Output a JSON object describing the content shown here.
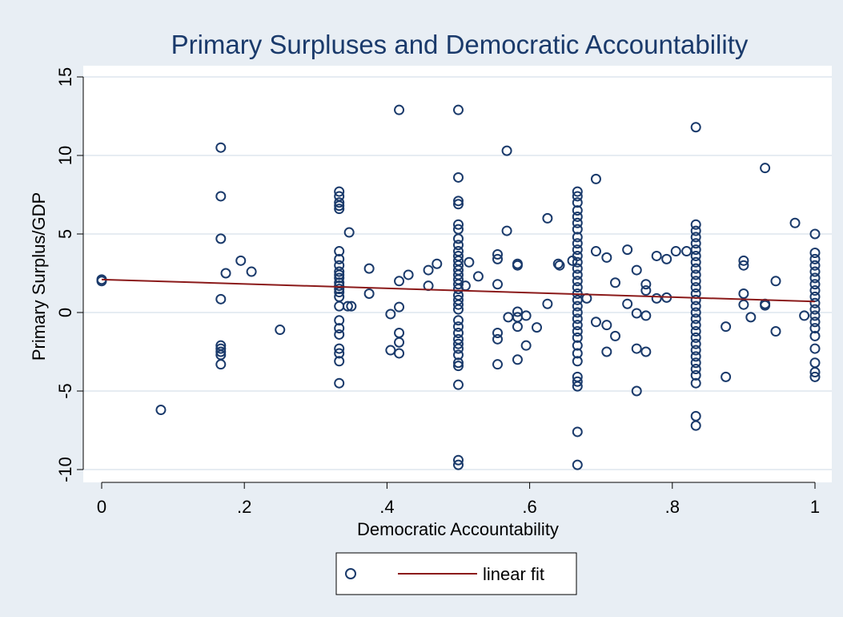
{
  "chart_data": {
    "type": "scatter",
    "title": "Primary Surpluses and Democratic Accountability",
    "xlabel": "Democratic Accountability",
    "ylabel": "Primary Surplus/GDP",
    "xlim": [
      0,
      1
    ],
    "ylim": [
      -10,
      15
    ],
    "x_ticks": [
      0,
      0.2,
      0.4,
      0.6,
      0.8,
      1
    ],
    "x_tick_labels": [
      "0",
      ".2",
      ".4",
      ".6",
      ".8",
      "1"
    ],
    "y_ticks": [
      -10,
      -5,
      0,
      5,
      10,
      15
    ],
    "y_tick_labels": [
      "-10",
      "-5",
      "0",
      "5",
      "10",
      "15"
    ],
    "grid": "horizontal",
    "legend_position": "bottom",
    "colors": {
      "background": "#e8eef4",
      "plot_area": "#ffffff",
      "marker": "#1a3a6b",
      "fit_line": "#8b1a1a",
      "grid": "#e6ecf2",
      "title": "#1a3a6b"
    },
    "series": [
      {
        "marker": "hollow-circle",
        "points": [
          [
            0,
            2.1
          ],
          [
            0,
            2.0
          ],
          [
            0.083,
            -6.2
          ],
          [
            0.167,
            10.5
          ],
          [
            0.167,
            7.4
          ],
          [
            0.167,
            4.7
          ],
          [
            0.167,
            0.85
          ],
          [
            0.167,
            -2.1
          ],
          [
            0.167,
            -2.3
          ],
          [
            0.167,
            -2.5
          ],
          [
            0.167,
            -2.7
          ],
          [
            0.167,
            -3.3
          ],
          [
            0.174,
            2.5
          ],
          [
            0.195,
            3.3
          ],
          [
            0.21,
            2.6
          ],
          [
            0.25,
            -1.1
          ],
          [
            0.333,
            7.7
          ],
          [
            0.333,
            7.4
          ],
          [
            0.333,
            7.0
          ],
          [
            0.333,
            6.8
          ],
          [
            0.333,
            6.6
          ],
          [
            0.333,
            3.9
          ],
          [
            0.333,
            3.4
          ],
          [
            0.333,
            3.0
          ],
          [
            0.333,
            2.6
          ],
          [
            0.333,
            2.4
          ],
          [
            0.333,
            2.2
          ],
          [
            0.333,
            1.9
          ],
          [
            0.333,
            1.7
          ],
          [
            0.333,
            1.5
          ],
          [
            0.333,
            1.3
          ],
          [
            0.333,
            1.0
          ],
          [
            0.333,
            0.4
          ],
          [
            0.333,
            -0.5
          ],
          [
            0.333,
            -1.0
          ],
          [
            0.333,
            -1.4
          ],
          [
            0.333,
            -2.3
          ],
          [
            0.333,
            -2.6
          ],
          [
            0.333,
            -3.1
          ],
          [
            0.333,
            -4.5
          ],
          [
            0.345,
            0.4
          ],
          [
            0.347,
            5.1
          ],
          [
            0.35,
            0.4
          ],
          [
            0.375,
            2.8
          ],
          [
            0.375,
            1.2
          ],
          [
            0.405,
            -0.1
          ],
          [
            0.405,
            -2.4
          ],
          [
            0.417,
            12.9
          ],
          [
            0.417,
            2.0
          ],
          [
            0.417,
            0.35
          ],
          [
            0.417,
            -1.3
          ],
          [
            0.417,
            -1.9
          ],
          [
            0.417,
            -2.6
          ],
          [
            0.43,
            2.4
          ],
          [
            0.458,
            2.7
          ],
          [
            0.458,
            1.7
          ],
          [
            0.47,
            3.1
          ],
          [
            0.5,
            12.9
          ],
          [
            0.5,
            8.6
          ],
          [
            0.5,
            7.1
          ],
          [
            0.5,
            6.9
          ],
          [
            0.5,
            5.6
          ],
          [
            0.5,
            5.3
          ],
          [
            0.5,
            4.7
          ],
          [
            0.5,
            4.3
          ],
          [
            0.5,
            3.9
          ],
          [
            0.5,
            3.6
          ],
          [
            0.5,
            3.3
          ],
          [
            0.5,
            3.0
          ],
          [
            0.5,
            2.7
          ],
          [
            0.5,
            2.4
          ],
          [
            0.5,
            2.1
          ],
          [
            0.5,
            1.8
          ],
          [
            0.5,
            1.5
          ],
          [
            0.5,
            1.1
          ],
          [
            0.5,
            0.8
          ],
          [
            0.5,
            0.5
          ],
          [
            0.5,
            0.2
          ],
          [
            0.5,
            -0.5
          ],
          [
            0.5,
            -0.9
          ],
          [
            0.5,
            -1.3
          ],
          [
            0.5,
            -1.7
          ],
          [
            0.5,
            -2.0
          ],
          [
            0.5,
            -2.3
          ],
          [
            0.5,
            -2.7
          ],
          [
            0.5,
            -3.2
          ],
          [
            0.5,
            -3.4
          ],
          [
            0.5,
            -4.6
          ],
          [
            0.5,
            -9.4
          ],
          [
            0.5,
            -9.7
          ],
          [
            0.51,
            1.7
          ],
          [
            0.515,
            3.2
          ],
          [
            0.528,
            2.3
          ],
          [
            0.555,
            3.7
          ],
          [
            0.555,
            3.4
          ],
          [
            0.555,
            1.8
          ],
          [
            0.555,
            -1.3
          ],
          [
            0.555,
            -1.7
          ],
          [
            0.555,
            -3.3
          ],
          [
            0.568,
            10.3
          ],
          [
            0.568,
            5.2
          ],
          [
            0.57,
            -0.3
          ],
          [
            0.583,
            3.1
          ],
          [
            0.583,
            3.0
          ],
          [
            0.583,
            0.05
          ],
          [
            0.583,
            -0.3
          ],
          [
            0.583,
            -0.9
          ],
          [
            0.583,
            -3.0
          ],
          [
            0.595,
            -0.2
          ],
          [
            0.595,
            -2.1
          ],
          [
            0.61,
            -0.95
          ],
          [
            0.625,
            6.0
          ],
          [
            0.625,
            0.55
          ],
          [
            0.64,
            3.1
          ],
          [
            0.642,
            3.0
          ],
          [
            0.66,
            3.3
          ],
          [
            0.667,
            7.7
          ],
          [
            0.667,
            7.4
          ],
          [
            0.667,
            7.0
          ],
          [
            0.667,
            6.5
          ],
          [
            0.667,
            6.1
          ],
          [
            0.667,
            5.7
          ],
          [
            0.667,
            5.3
          ],
          [
            0.667,
            4.8
          ],
          [
            0.667,
            4.4
          ],
          [
            0.667,
            4.0
          ],
          [
            0.667,
            3.6
          ],
          [
            0.667,
            3.2
          ],
          [
            0.667,
            2.8
          ],
          [
            0.667,
            2.4
          ],
          [
            0.667,
            2.0
          ],
          [
            0.667,
            1.6
          ],
          [
            0.667,
            1.2
          ],
          [
            0.667,
            0.8
          ],
          [
            0.667,
            0.4
          ],
          [
            0.667,
            0.0
          ],
          [
            0.667,
            -0.4
          ],
          [
            0.667,
            -0.8
          ],
          [
            0.667,
            -1.2
          ],
          [
            0.667,
            -1.6
          ],
          [
            0.667,
            -2.1
          ],
          [
            0.667,
            -2.6
          ],
          [
            0.667,
            -3.1
          ],
          [
            0.667,
            -4.1
          ],
          [
            0.667,
            -4.4
          ],
          [
            0.667,
            -4.7
          ],
          [
            0.667,
            -7.6
          ],
          [
            0.667,
            -9.7
          ],
          [
            0.68,
            0.9
          ],
          [
            0.693,
            8.5
          ],
          [
            0.693,
            3.9
          ],
          [
            0.693,
            -0.6
          ],
          [
            0.708,
            3.5
          ],
          [
            0.708,
            -0.8
          ],
          [
            0.708,
            -2.5
          ],
          [
            0.72,
            1.9
          ],
          [
            0.72,
            -1.5
          ],
          [
            0.737,
            4.0
          ],
          [
            0.737,
            0.55
          ],
          [
            0.75,
            2.7
          ],
          [
            0.75,
            -0.05
          ],
          [
            0.75,
            -2.3
          ],
          [
            0.75,
            -5.0
          ],
          [
            0.763,
            1.8
          ],
          [
            0.763,
            1.4
          ],
          [
            0.763,
            -0.2
          ],
          [
            0.763,
            -2.5
          ],
          [
            0.778,
            3.6
          ],
          [
            0.778,
            0.9
          ],
          [
            0.792,
            3.4
          ],
          [
            0.792,
            0.95
          ],
          [
            0.805,
            3.9
          ],
          [
            0.82,
            3.9
          ],
          [
            0.833,
            11.8
          ],
          [
            0.833,
            5.6
          ],
          [
            0.833,
            5.2
          ],
          [
            0.833,
            4.8
          ],
          [
            0.833,
            4.4
          ],
          [
            0.833,
            4.0
          ],
          [
            0.833,
            3.6
          ],
          [
            0.833,
            3.2
          ],
          [
            0.833,
            2.8
          ],
          [
            0.833,
            2.4
          ],
          [
            0.833,
            2.0
          ],
          [
            0.833,
            1.6
          ],
          [
            0.833,
            1.2
          ],
          [
            0.833,
            0.8
          ],
          [
            0.833,
            0.4
          ],
          [
            0.833,
            0.0
          ],
          [
            0.833,
            -0.4
          ],
          [
            0.833,
            -0.8
          ],
          [
            0.833,
            -1.2
          ],
          [
            0.833,
            -1.6
          ],
          [
            0.833,
            -2.0
          ],
          [
            0.833,
            -2.4
          ],
          [
            0.833,
            -2.8
          ],
          [
            0.833,
            -3.2
          ],
          [
            0.833,
            -3.6
          ],
          [
            0.833,
            -4.0
          ],
          [
            0.833,
            -4.5
          ],
          [
            0.833,
            -6.6
          ],
          [
            0.833,
            -7.2
          ],
          [
            0.875,
            -0.9
          ],
          [
            0.875,
            -4.1
          ],
          [
            0.9,
            3.3
          ],
          [
            0.9,
            3.0
          ],
          [
            0.9,
            1.2
          ],
          [
            0.9,
            0.5
          ],
          [
            0.91,
            -0.3
          ],
          [
            0.93,
            9.2
          ],
          [
            0.93,
            0.55
          ],
          [
            0.93,
            0.45
          ],
          [
            0.945,
            2.0
          ],
          [
            0.945,
            -1.2
          ],
          [
            0.972,
            5.7
          ],
          [
            0.985,
            -0.2
          ],
          [
            1.0,
            5.0
          ],
          [
            1.0,
            3.8
          ],
          [
            1.0,
            3.4
          ],
          [
            1.0,
            3.0
          ],
          [
            1.0,
            2.6
          ],
          [
            1.0,
            2.2
          ],
          [
            1.0,
            1.8
          ],
          [
            1.0,
            1.4
          ],
          [
            1.0,
            1.0
          ],
          [
            1.0,
            0.6
          ],
          [
            1.0,
            0.2
          ],
          [
            1.0,
            -0.2
          ],
          [
            1.0,
            -0.6
          ],
          [
            1.0,
            -1.0
          ],
          [
            1.0,
            -1.5
          ],
          [
            1.0,
            -2.3
          ],
          [
            1.0,
            -3.2
          ],
          [
            1.0,
            -3.8
          ],
          [
            1.0,
            -4.1
          ]
        ]
      },
      {
        "name": "linear fit",
        "type": "line",
        "points": [
          [
            0,
            2.1
          ],
          [
            1,
            0.7
          ]
        ]
      }
    ]
  }
}
